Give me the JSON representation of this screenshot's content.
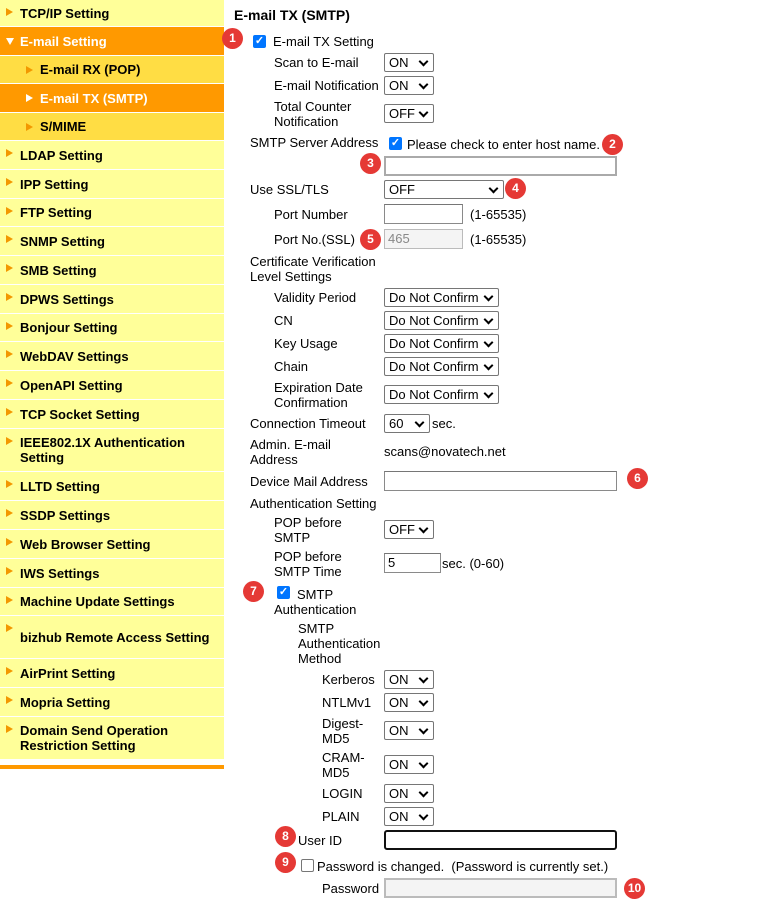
{
  "sidebar": {
    "items": [
      {
        "label": "TCP/IP Setting"
      },
      {
        "label": "E-mail Setting"
      },
      {
        "label": "E-mail RX (POP)"
      },
      {
        "label": "E-mail TX (SMTP)"
      },
      {
        "label": "S/MIME"
      },
      {
        "label": "LDAP Setting"
      },
      {
        "label": "IPP Setting"
      },
      {
        "label": "FTP Setting"
      },
      {
        "label": "SNMP Setting"
      },
      {
        "label": "SMB Setting"
      },
      {
        "label": "DPWS Settings"
      },
      {
        "label": "Bonjour Setting"
      },
      {
        "label": "WebDAV Settings"
      },
      {
        "label": "OpenAPI Setting"
      },
      {
        "label": "TCP Socket Setting"
      },
      {
        "label": "IEEE802.1X Authentication Setting"
      },
      {
        "label": "LLTD Setting"
      },
      {
        "label": "SSDP Settings"
      },
      {
        "label": "Web Browser Setting"
      },
      {
        "label": "IWS Settings"
      },
      {
        "label": "Machine Update Settings"
      },
      {
        "label": "bizhub Remote Access Setting"
      },
      {
        "label": "AirPrint Setting"
      },
      {
        "label": "Mopria Setting"
      },
      {
        "label": "Domain Send Operation Restriction Setting"
      }
    ]
  },
  "main": {
    "title": "E-mail TX (SMTP)",
    "email_tx_setting": {
      "label": "E-mail TX Setting",
      "checked": true
    },
    "scan_to_email": {
      "label": "Scan to E-mail",
      "value": "ON"
    },
    "email_notification": {
      "label": "E-mail Notification",
      "value": "ON"
    },
    "total_counter": {
      "label": "Total Counter Notification",
      "value": "OFF"
    },
    "smtp_server": {
      "label": "SMTP Server Address",
      "check_label": "Please check to enter host name.",
      "checked": true,
      "value": ""
    },
    "ssl": {
      "label": "Use SSL/TLS",
      "value": "OFF"
    },
    "port": {
      "label": "Port Number",
      "value": "",
      "range": "(1-65535)"
    },
    "port_ssl": {
      "label": "Port No.(SSL)",
      "value": "465",
      "range": "(1-65535)"
    },
    "cert": {
      "label": "Certificate Verification Level Settings",
      "validity": {
        "label": "Validity Period",
        "value": "Do Not Confirm"
      },
      "cn": {
        "label": "CN",
        "value": "Do Not Confirm"
      },
      "key_usage": {
        "label": "Key Usage",
        "value": "Do Not Confirm"
      },
      "chain": {
        "label": "Chain",
        "value": "Do Not Confirm"
      },
      "expiration": {
        "label": "Expiration Date Confirmation",
        "value": "Do Not Confirm"
      }
    },
    "timeout": {
      "label": "Connection Timeout",
      "value": "60",
      "unit": "sec."
    },
    "admin_email": {
      "label": "Admin. E-mail Address",
      "value": "scans@novatech.net"
    },
    "device_mail": {
      "label": "Device Mail Address",
      "value": ""
    },
    "auth": {
      "label": "Authentication Setting",
      "pop_before": {
        "label": "POP before SMTP",
        "value": "OFF"
      },
      "pop_time": {
        "label": "POP before SMTP Time",
        "value": "5",
        "unit": "sec. (0-60)"
      }
    },
    "smtp_auth": {
      "label_1": "SMTP",
      "label_2": "Authentication",
      "checked": true,
      "method_label": "SMTP Authentication Method",
      "kerberos": {
        "label": "Kerberos",
        "value": "ON"
      },
      "ntlm": {
        "label": "NTLMv1",
        "value": "ON"
      },
      "digest": {
        "label": "Digest-MD5",
        "value": "ON"
      },
      "cram": {
        "label": "CRAM-MD5",
        "value": "ON"
      },
      "login": {
        "label": "LOGIN",
        "value": "ON"
      },
      "plain": {
        "label": "PLAIN",
        "value": "ON"
      }
    },
    "user_id": {
      "label": "User ID",
      "value": ""
    },
    "password_changed": {
      "label": "Password is changed.  (Password is currently set.)",
      "checked": false
    },
    "password": {
      "label": "Password",
      "value": ""
    }
  },
  "markers": [
    "1",
    "2",
    "3",
    "4",
    "5",
    "6",
    "7",
    "8",
    "9",
    "10"
  ],
  "colors": {
    "sidebar_bg": "#ffff99",
    "selected": "#ff9900",
    "sub_bg": "#ffdd44",
    "marker": "#e53935"
  }
}
